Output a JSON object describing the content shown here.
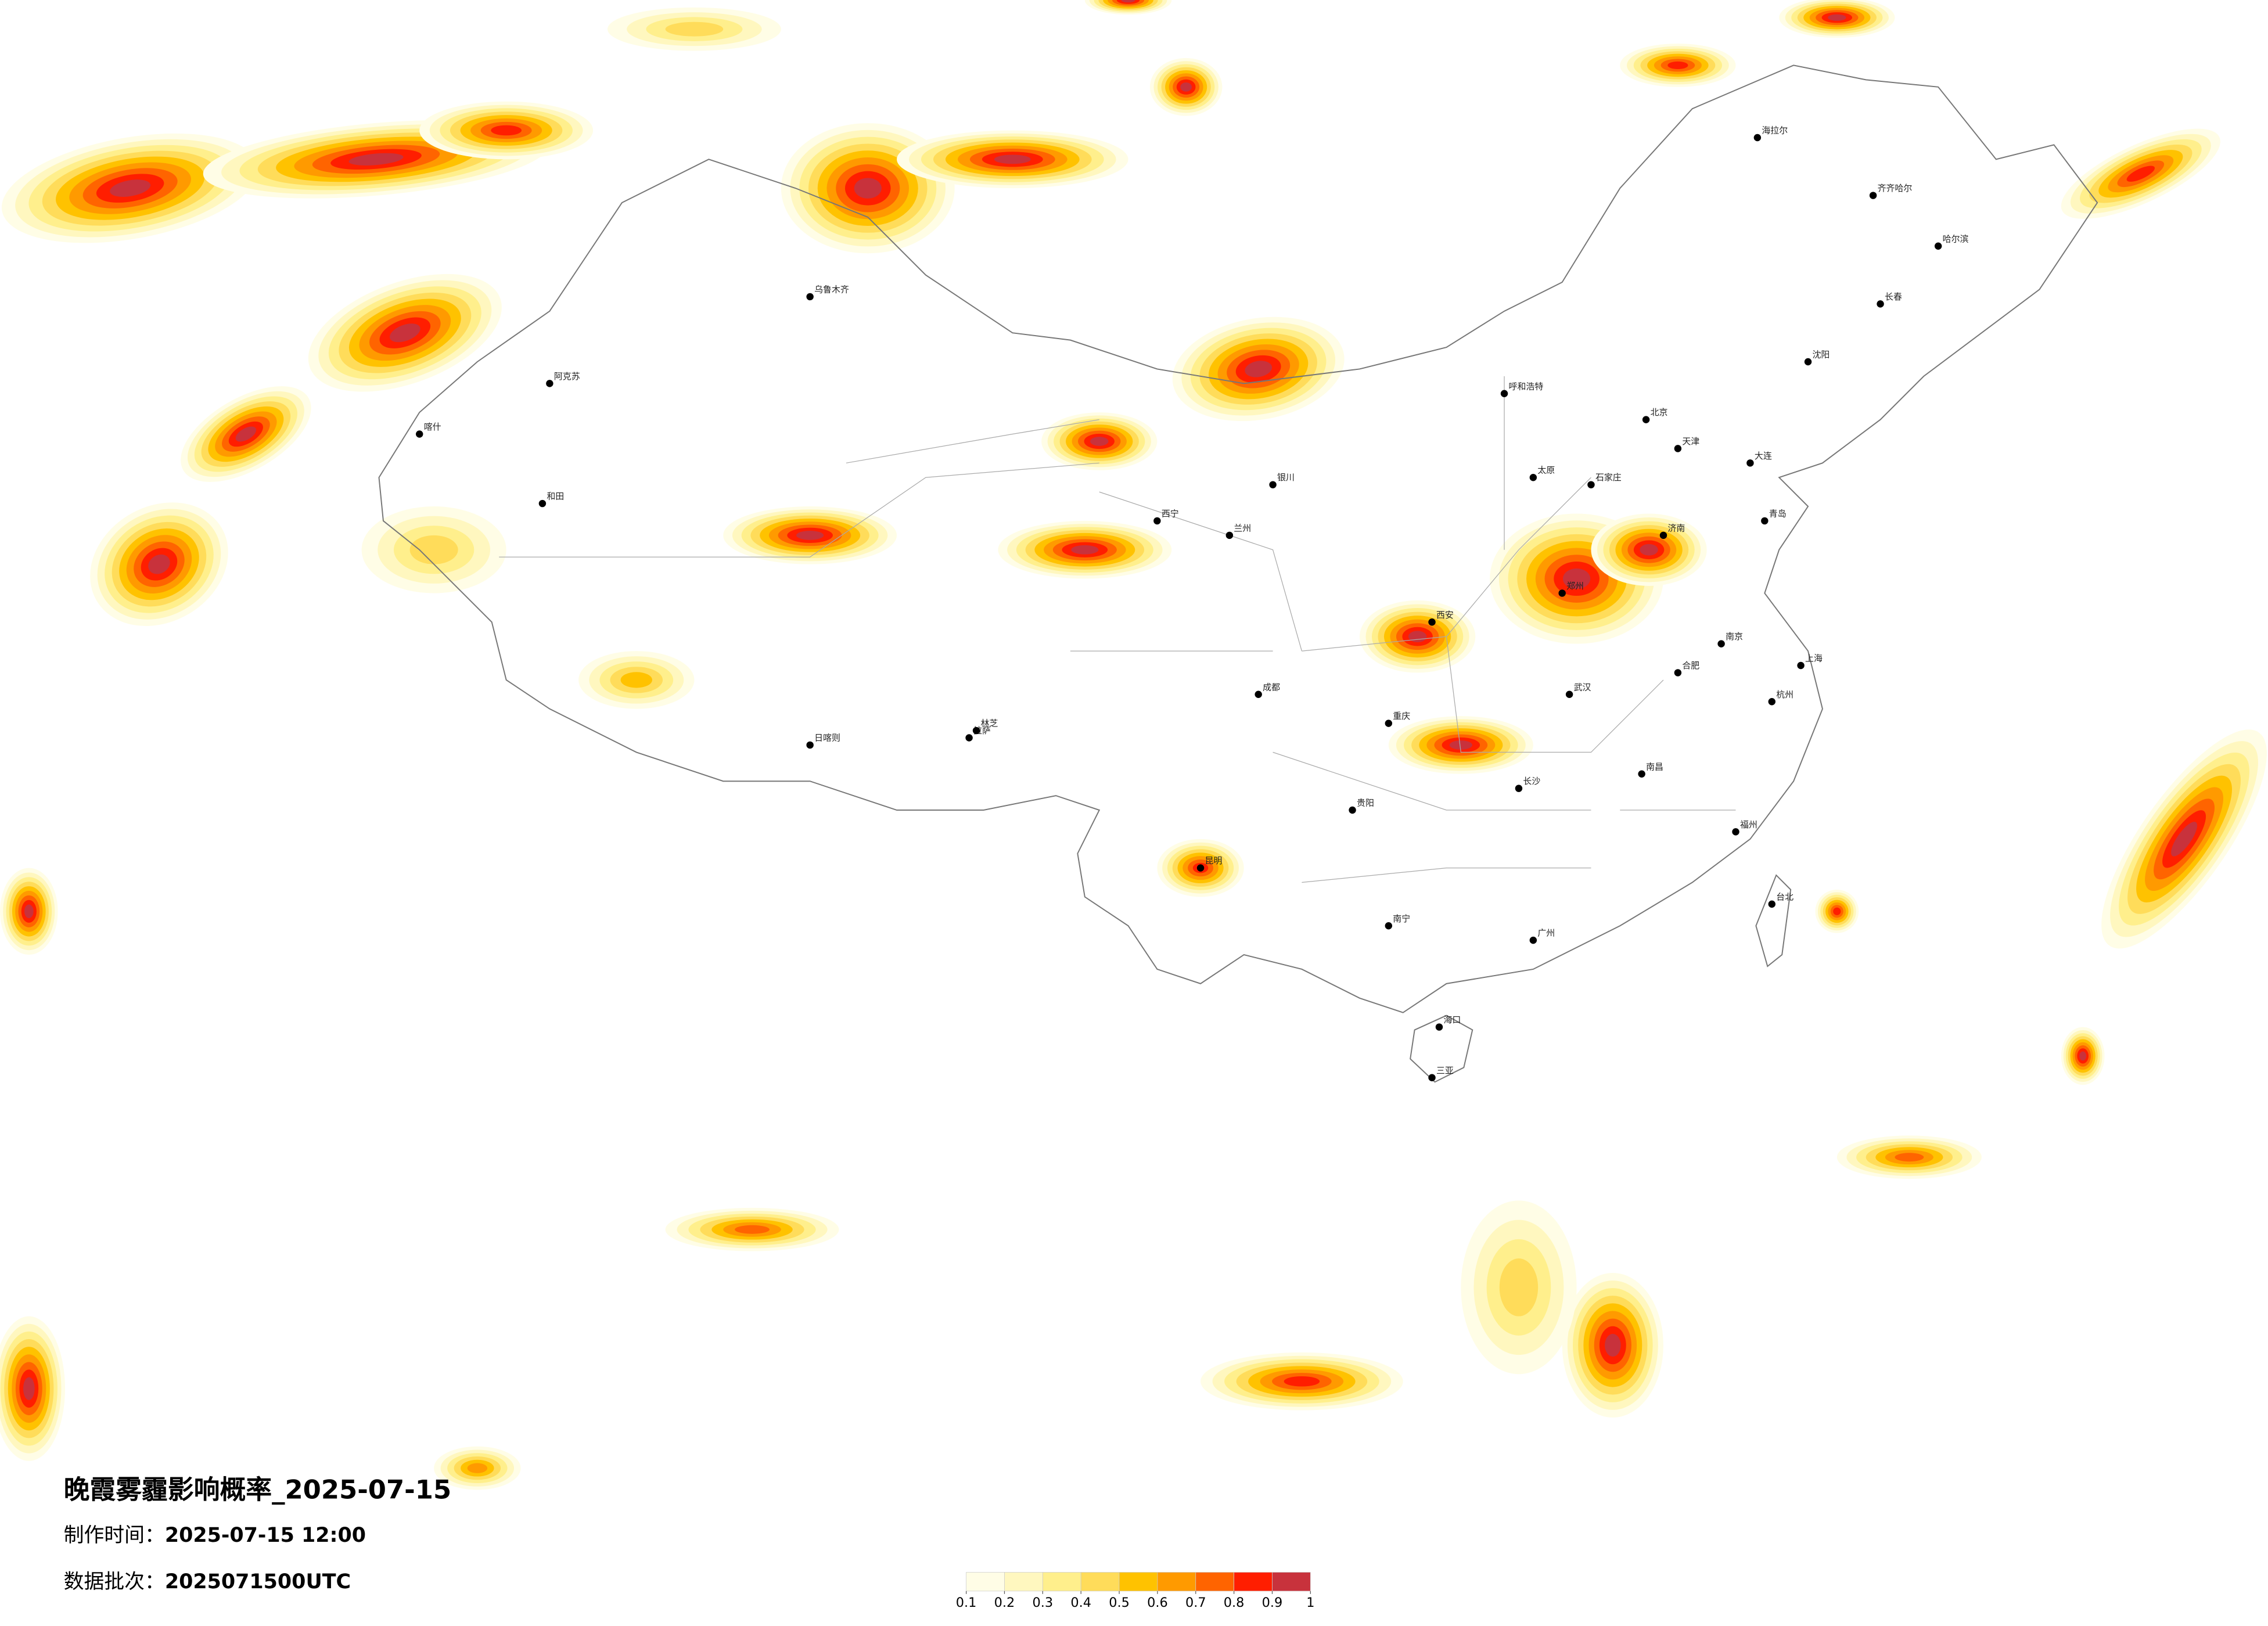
{
  "title": "晚霞雾霾影响概率_2025-07-15",
  "info": [
    {
      "label": "制作时间：",
      "value": "2025-07-15 12:00"
    },
    {
      "label": "数据批次：",
      "value": "2025071500UTC"
    }
  ],
  "legend": {
    "ticks": [
      0.1,
      0.2,
      0.3,
      0.4,
      0.5,
      0.6,
      0.7,
      0.8,
      0.9,
      1
    ],
    "colors": [
      "#fffde6",
      "#fff7bf",
      "#ffef8c",
      "#ffdc5a",
      "#ffc200",
      "#ff9a00",
      "#ff6400",
      "#ff1e00",
      "#c8323c"
    ]
  },
  "cities": [
    "北京",
    "天津",
    "石家庄",
    "太原",
    "呼和浩特",
    "沈阳",
    "长春",
    "哈尔滨",
    "济南",
    "郑州",
    "西安",
    "兰州",
    "西宁",
    "银川",
    "乌鲁木齐",
    "拉萨",
    "成都",
    "重庆",
    "贵阳",
    "昆明",
    "南宁",
    "广州",
    "海口",
    "长沙",
    "武汉",
    "南昌",
    "福州",
    "杭州",
    "南京",
    "合肥",
    "上海",
    "台北",
    "海拉尔",
    "齐齐哈尔",
    "大连",
    "青岛",
    "喀什",
    "和田",
    "阿克苏",
    "日喀则",
    "林芝",
    "三亚"
  ]
}
